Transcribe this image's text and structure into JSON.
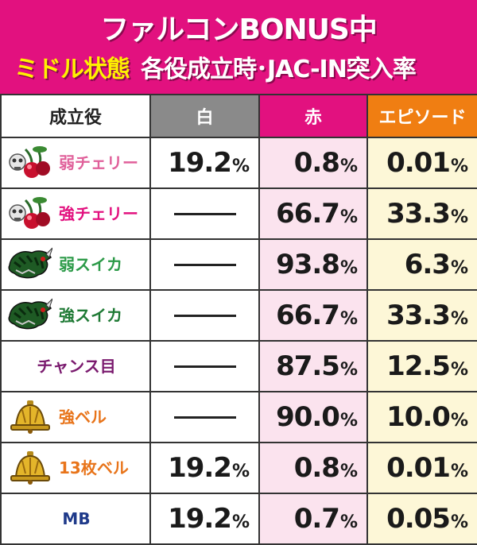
{
  "header": {
    "title_line1": "ファルコンBONUS中",
    "title_state": "ミドル状態",
    "title_rest": "各役成立時･JAC-IN突入率"
  },
  "table": {
    "headers": [
      "成立役",
      "白",
      "赤",
      "エピソード"
    ],
    "percent_sign": "%",
    "rows": [
      {
        "name": "弱チェリー",
        "name_color": "#e0609a",
        "icon": "cherry-icon",
        "values": [
          "19.2",
          "0.8",
          "0.01"
        ]
      },
      {
        "name": "強チェリー",
        "name_color": "#e2117f",
        "icon": "cherry-icon",
        "values": [
          null,
          "66.7",
          "33.3"
        ]
      },
      {
        "name": "弱スイカ",
        "name_color": "#2c9a48",
        "icon": "watermelon-icon",
        "values": [
          null,
          "93.8",
          "6.3"
        ]
      },
      {
        "name": "強スイカ",
        "name_color": "#1f7a35",
        "icon": "watermelon-icon",
        "values": [
          null,
          "66.7",
          "33.3"
        ]
      },
      {
        "name": "チャンス目",
        "name_color": "#7a1a6e",
        "icon": null,
        "values": [
          null,
          "87.5",
          "12.5"
        ]
      },
      {
        "name": "強ベル",
        "name_color": "#e8741a",
        "icon": "bell-icon",
        "values": [
          null,
          "90.0",
          "10.0"
        ]
      },
      {
        "name": "13枚ベル",
        "name_color": "#e8741a",
        "icon": "bell-icon",
        "values": [
          "19.2",
          "0.8",
          "0.01"
        ]
      },
      {
        "name": "MB",
        "name_color": "#1f3a8a",
        "icon": null,
        "values": [
          "19.2",
          "0.7",
          "0.05"
        ]
      }
    ]
  }
}
